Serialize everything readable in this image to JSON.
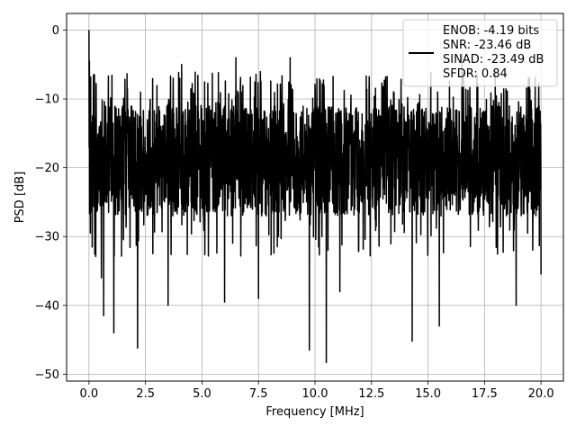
{
  "chart_data": {
    "type": "line",
    "xlabel": "Frequency [MHz]",
    "ylabel": "PSD [dB]",
    "xlim": [
      -0.99,
      20.99
    ],
    "ylim": [
      -51.0,
      2.42
    ],
    "xticks": [
      0.0,
      2.5,
      5.0,
      7.5,
      10.0,
      12.5,
      15.0,
      17.5,
      20.0
    ],
    "xtick_labels": [
      "0.0",
      "2.5",
      "5.0",
      "7.5",
      "10.0",
      "12.5",
      "15.0",
      "17.5",
      "20.0"
    ],
    "yticks": [
      0,
      -10,
      -20,
      -30,
      -40,
      -50
    ],
    "ytick_labels": [
      "0",
      "−10",
      "−20",
      "−30",
      "−40",
      "−50"
    ],
    "grid": true,
    "legend_position": "upper-right",
    "legend_lines": [
      "ENOB: -4.19 bits",
      "SNR: -23.46 dB",
      "SINAD: -23.49 dB",
      "SFDR: 0.84"
    ],
    "series_color": "#000000",
    "x_range": [
      0.0,
      20.0
    ],
    "baseline_range": [
      -27,
      -11
    ],
    "peaks": [
      {
        "x": 0.0,
        "y": 0.0
      },
      {
        "x": 0.02,
        "y": -4.5
      },
      {
        "x": 0.06,
        "y": -29.5
      },
      {
        "x": 0.2,
        "y": -6.5
      },
      {
        "x": 0.55,
        "y": -36.0
      },
      {
        "x": 0.65,
        "y": -41.5
      },
      {
        "x": 1.1,
        "y": -44.0
      },
      {
        "x": 2.15,
        "y": -46.2
      },
      {
        "x": 3.5,
        "y": -40.0
      },
      {
        "x": 4.1,
        "y": -5.0
      },
      {
        "x": 6.0,
        "y": -39.5
      },
      {
        "x": 6.5,
        "y": -4.0
      },
      {
        "x": 7.5,
        "y": -39.0
      },
      {
        "x": 8.9,
        "y": -4.0
      },
      {
        "x": 9.75,
        "y": -46.5
      },
      {
        "x": 10.5,
        "y": -48.3
      },
      {
        "x": 11.1,
        "y": -38.0
      },
      {
        "x": 14.3,
        "y": -45.2
      },
      {
        "x": 15.5,
        "y": -43.0
      },
      {
        "x": 16.5,
        "y": -3.5
      },
      {
        "x": 18.9,
        "y": -40.0
      },
      {
        "x": 20.0,
        "y": -35.5
      }
    ]
  }
}
